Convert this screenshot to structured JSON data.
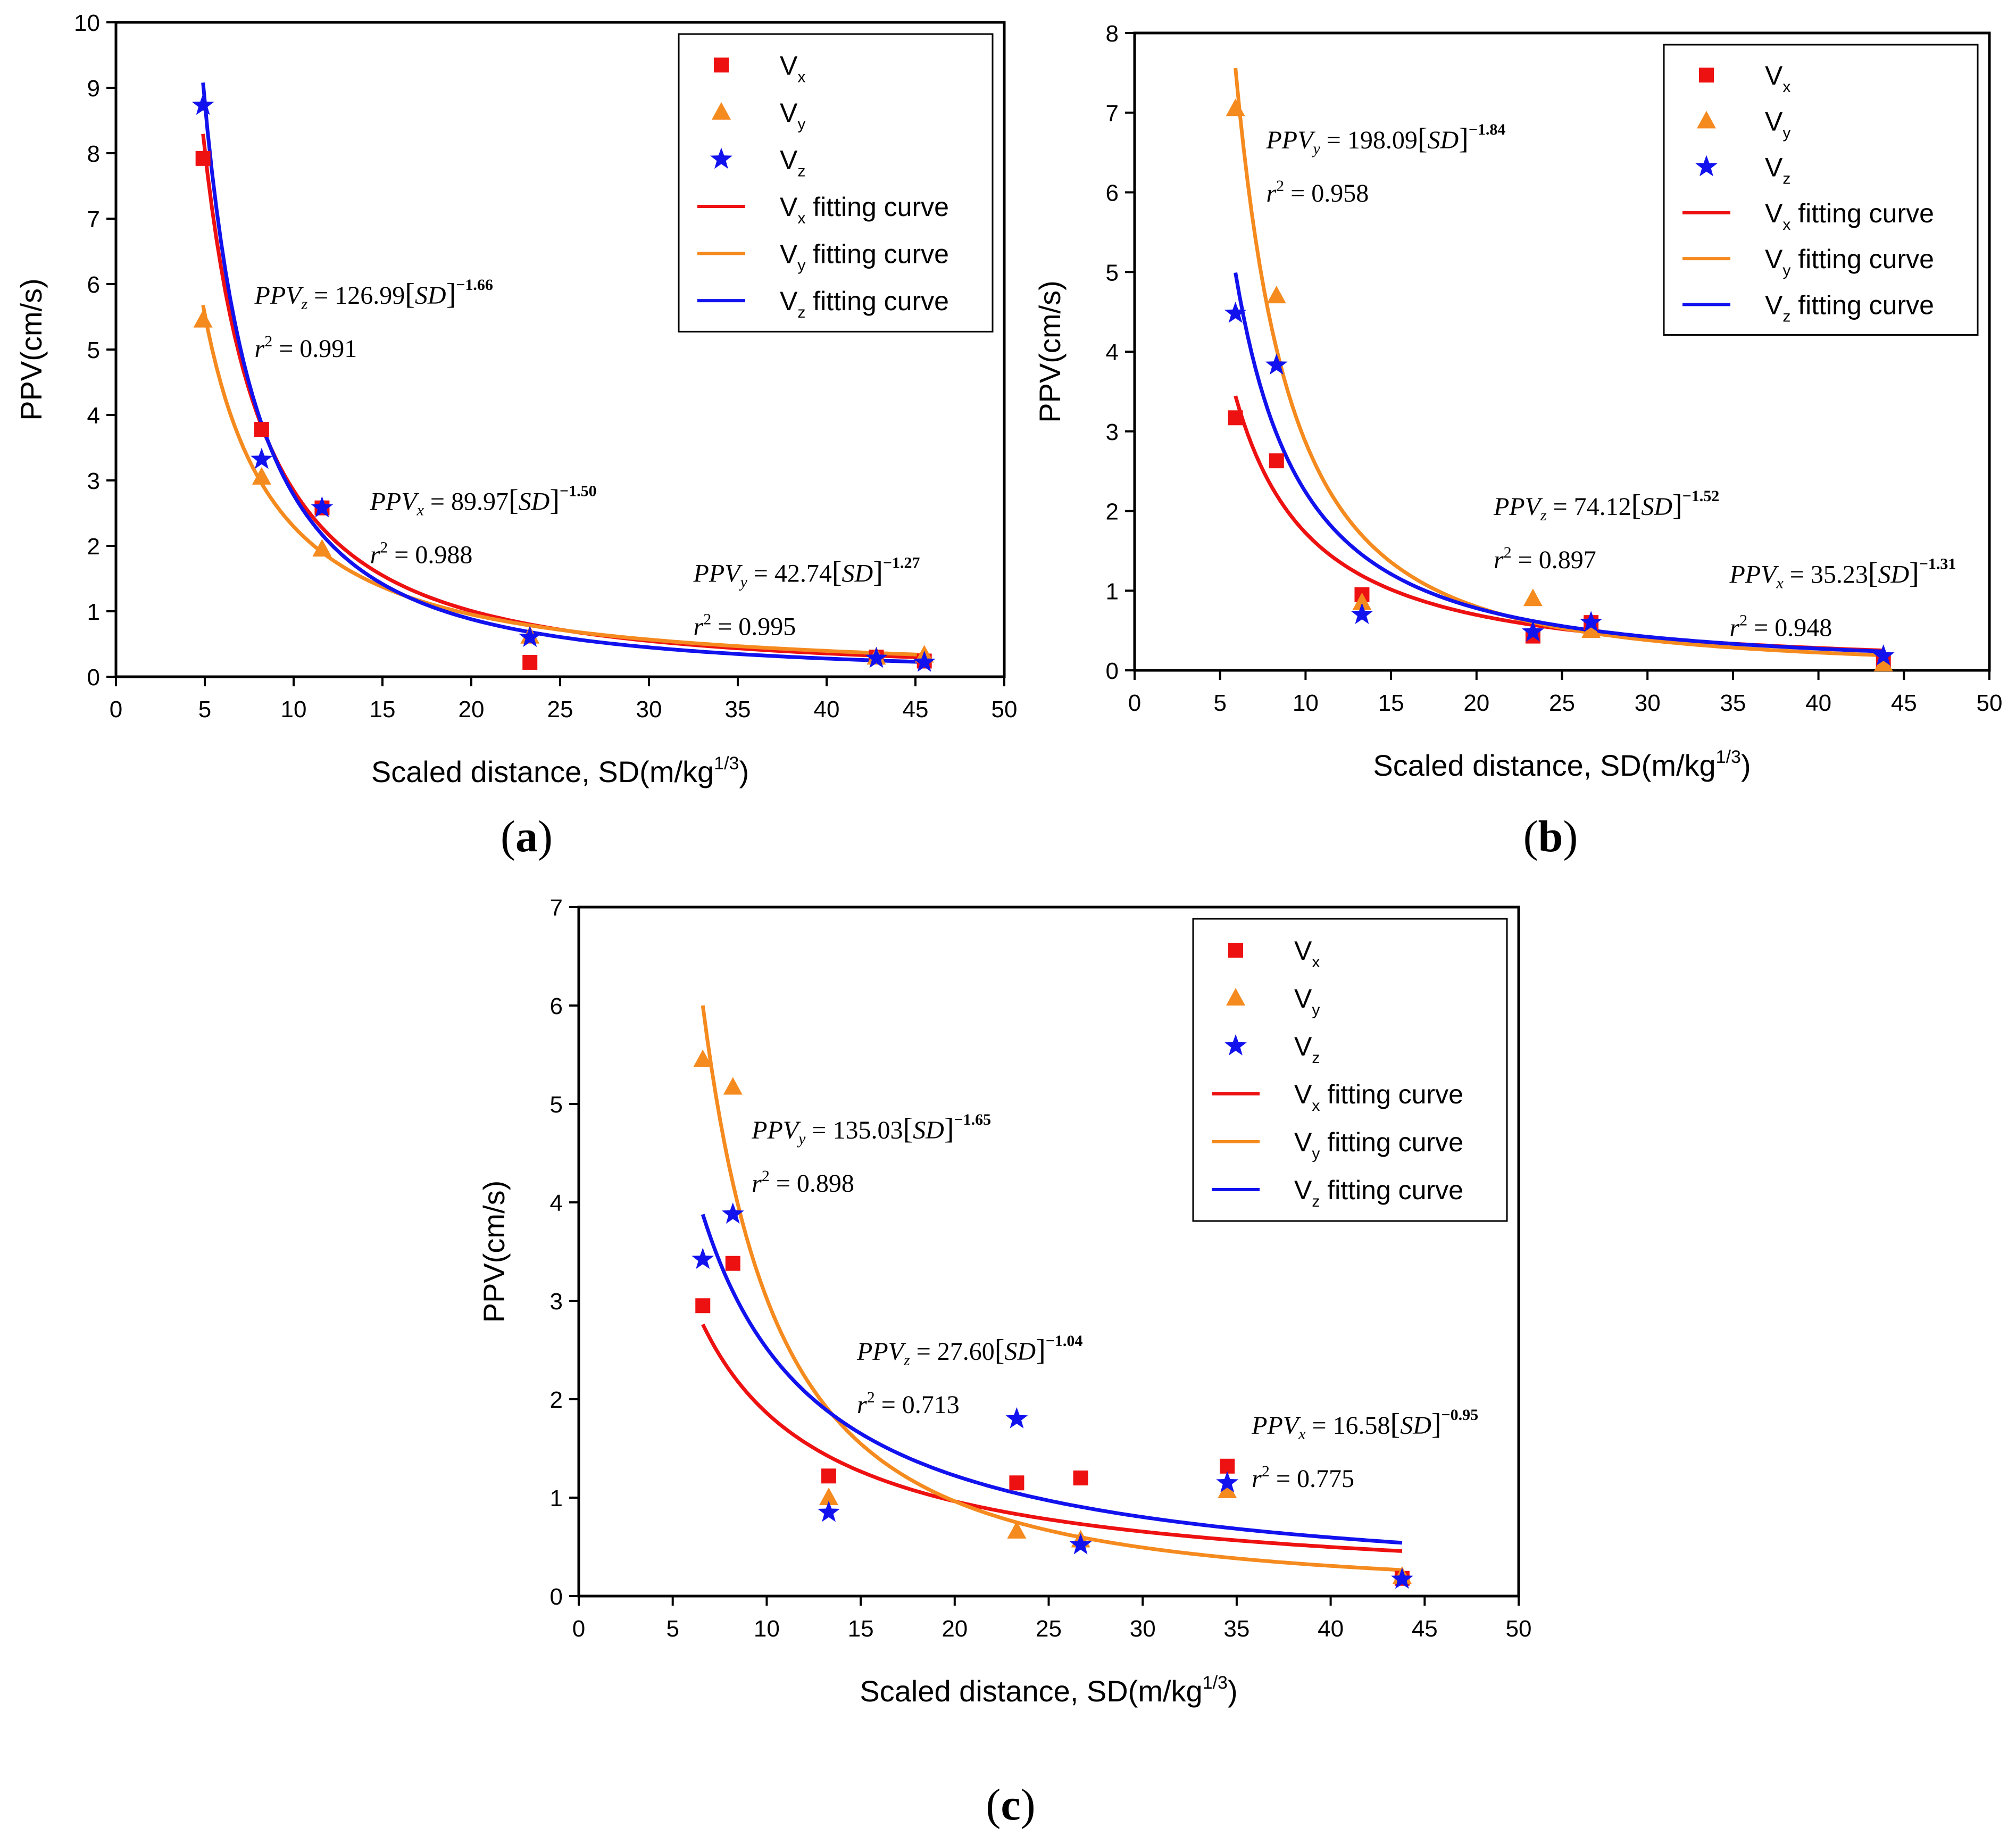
{
  "figure": {
    "panels": [
      {
        "label": "(a)",
        "letter": "a"
      },
      {
        "label": "(b)",
        "letter": "b"
      },
      {
        "label": "(c)",
        "letter": "c"
      }
    ]
  },
  "chart_data": [
    {
      "type": "scatter",
      "panel": "a",
      "xlabel": "Scaled distance, SD(m/kg",
      "xlabel_sup": "1/3",
      "xlabel_close": ")",
      "ylabel": "PPV(cm/s)",
      "xlim": [
        0,
        50
      ],
      "ylim": [
        0,
        10
      ],
      "xticks": [
        0,
        5,
        10,
        15,
        20,
        25,
        30,
        35,
        40,
        45,
        50
      ],
      "yticks": [
        0,
        1,
        2,
        3,
        4,
        5,
        6,
        7,
        8,
        9,
        10
      ],
      "legend_position": "top-right",
      "series": [
        {
          "name": "V",
          "sub": "x",
          "marker": "square",
          "color": "#ee1111",
          "points": [
            [
              4.9,
              7.92
            ],
            [
              8.2,
              3.78
            ],
            [
              11.6,
              2.58
            ],
            [
              23.3,
              0.22
            ],
            [
              42.8,
              0.3
            ],
            [
              45.5,
              0.24
            ]
          ]
        },
        {
          "name": "V",
          "sub": "y",
          "marker": "triangle",
          "color": "#f58a1f",
          "points": [
            [
              4.9,
              5.45
            ],
            [
              8.2,
              3.05
            ],
            [
              11.6,
              1.95
            ],
            [
              23.3,
              0.62
            ],
            [
              42.8,
              0.3
            ],
            [
              45.5,
              0.33
            ]
          ]
        },
        {
          "name": "V",
          "sub": "z",
          "marker": "star",
          "color": "#1212ee",
          "points": [
            [
              4.9,
              8.73
            ],
            [
              8.2,
              3.32
            ],
            [
              11.6,
              2.58
            ],
            [
              23.3,
              0.6
            ],
            [
              42.8,
              0.28
            ],
            [
              45.5,
              0.22
            ]
          ]
        }
      ],
      "curves": [
        {
          "name": "V",
          "sub": "x",
          "label": "fitting curve",
          "color": "#ee1111",
          "k": 89.97,
          "b": -1.5,
          "x_from": 4.9,
          "x_to": 45.5
        },
        {
          "name": "V",
          "sub": "y",
          "label": "fitting curve",
          "color": "#f58a1f",
          "k": 42.74,
          "b": -1.27,
          "x_from": 4.9,
          "x_to": 45.5
        },
        {
          "name": "V",
          "sub": "z",
          "label": "fitting curve",
          "color": "#1212ee",
          "k": 126.99,
          "b": -1.66,
          "x_from": 4.9,
          "x_to": 45.5
        }
      ],
      "annotations": [
        {
          "sub": "z",
          "coef": "126.99",
          "exp": "−1.66",
          "r2": "0.991",
          "x": 7.8,
          "y": 5.7
        },
        {
          "sub": "x",
          "coef": "89.97",
          "exp": "−1.50",
          "r2": "0.988",
          "x": 14.3,
          "y": 2.55
        },
        {
          "sub": "y",
          "coef": "42.74",
          "exp": "−1.27",
          "r2": "0.995",
          "x": 32.5,
          "y": 1.45
        }
      ]
    },
    {
      "type": "scatter",
      "panel": "b",
      "xlabel": "Scaled distance, SD(m/kg",
      "xlabel_sup": "1/3",
      "xlabel_close": ")",
      "ylabel": "PPV(cm/s)",
      "xlim": [
        0,
        50
      ],
      "ylim": [
        0,
        8
      ],
      "xticks": [
        0,
        5,
        10,
        15,
        20,
        25,
        30,
        35,
        40,
        45,
        50
      ],
      "yticks": [
        0,
        1,
        2,
        3,
        4,
        5,
        6,
        7,
        8
      ],
      "legend_position": "top-right",
      "series": [
        {
          "name": "V",
          "sub": "x",
          "marker": "square",
          "color": "#ee1111",
          "points": [
            [
              5.9,
              3.17
            ],
            [
              8.3,
              2.63
            ],
            [
              13.3,
              0.95
            ],
            [
              23.3,
              0.43
            ],
            [
              26.7,
              0.6
            ],
            [
              43.8,
              0.12
            ]
          ]
        },
        {
          "name": "V",
          "sub": "y",
          "marker": "triangle",
          "color": "#f58a1f",
          "points": [
            [
              5.9,
              7.05
            ],
            [
              8.3,
              4.7
            ],
            [
              13.3,
              0.85
            ],
            [
              23.3,
              0.9
            ],
            [
              26.7,
              0.5
            ],
            [
              43.8,
              0.08
            ]
          ]
        },
        {
          "name": "V",
          "sub": "z",
          "marker": "star",
          "color": "#1212ee",
          "points": [
            [
              5.9,
              4.48
            ],
            [
              8.3,
              3.83
            ],
            [
              13.3,
              0.7
            ],
            [
              23.3,
              0.48
            ],
            [
              26.7,
              0.6
            ],
            [
              43.8,
              0.18
            ]
          ]
        }
      ],
      "curves": [
        {
          "name": "V",
          "sub": "x",
          "label": "fitting curve",
          "color": "#ee1111",
          "k": 35.23,
          "b": -1.31,
          "x_from": 5.9,
          "x_to": 43.8
        },
        {
          "name": "V",
          "sub": "y",
          "label": "fitting curve",
          "color": "#f58a1f",
          "k": 198.09,
          "b": -1.84,
          "x_from": 5.9,
          "x_to": 43.8
        },
        {
          "name": "V",
          "sub": "z",
          "label": "fitting curve",
          "color": "#1212ee",
          "k": 74.12,
          "b": -1.52,
          "x_from": 5.9,
          "x_to": 43.8
        }
      ],
      "annotations": [
        {
          "sub": "y",
          "coef": "198.09",
          "exp": "−1.84",
          "r2": "0.958",
          "x": 7.7,
          "y": 6.55
        },
        {
          "sub": "z",
          "coef": "74.12",
          "exp": "−1.52",
          "r2": "0.897",
          "x": 21.0,
          "y": 1.95
        },
        {
          "sub": "x",
          "coef": "35.23",
          "exp": "−1.31",
          "r2": "0.948",
          "x": 34.8,
          "y": 1.1
        }
      ]
    },
    {
      "type": "scatter",
      "panel": "c",
      "xlabel": "Scaled distance, SD(m/kg",
      "xlabel_sup": "1/3",
      "xlabel_close": ")",
      "ylabel": "PPV(cm/s)",
      "xlim": [
        0,
        50
      ],
      "ylim": [
        0,
        7
      ],
      "xticks": [
        0,
        5,
        10,
        15,
        20,
        25,
        30,
        35,
        40,
        45,
        50
      ],
      "yticks": [
        0,
        1,
        2,
        3,
        4,
        5,
        6,
        7
      ],
      "legend_position": "top-right",
      "series": [
        {
          "name": "V",
          "sub": "x",
          "marker": "square",
          "color": "#ee1111",
          "points": [
            [
              6.6,
              2.95
            ],
            [
              8.2,
              3.38
            ],
            [
              13.3,
              1.22
            ],
            [
              23.3,
              1.15
            ],
            [
              26.7,
              1.2
            ],
            [
              34.5,
              1.32
            ],
            [
              43.8,
              0.18
            ]
          ]
        },
        {
          "name": "V",
          "sub": "y",
          "marker": "triangle",
          "color": "#f58a1f",
          "points": [
            [
              6.6,
              5.45
            ],
            [
              8.2,
              5.17
            ],
            [
              13.3,
              1.0
            ],
            [
              23.3,
              0.66
            ],
            [
              26.7,
              0.57
            ],
            [
              34.5,
              1.07
            ],
            [
              43.8,
              0.2
            ]
          ]
        },
        {
          "name": "V",
          "sub": "z",
          "marker": "star",
          "color": "#1212ee",
          "points": [
            [
              6.6,
              3.42
            ],
            [
              8.2,
              3.88
            ],
            [
              13.3,
              0.85
            ],
            [
              23.3,
              1.8
            ],
            [
              26.7,
              0.52
            ],
            [
              34.5,
              1.15
            ],
            [
              43.8,
              0.17
            ]
          ]
        }
      ],
      "curves": [
        {
          "name": "V",
          "sub": "x",
          "label": "fitting curve",
          "color": "#ee1111",
          "k": 16.58,
          "b": -0.95,
          "x_from": 6.6,
          "x_to": 43.8
        },
        {
          "name": "V",
          "sub": "y",
          "label": "fitting curve",
          "color": "#f58a1f",
          "k": 135.03,
          "b": -1.65,
          "x_from": 6.6,
          "x_to": 43.8
        },
        {
          "name": "V",
          "sub": "z",
          "label": "fitting curve",
          "color": "#1212ee",
          "k": 27.6,
          "b": -1.04,
          "x_from": 6.6,
          "x_to": 43.8
        }
      ],
      "annotations": [
        {
          "sub": "y",
          "coef": "135.03",
          "exp": "−1.65",
          "r2": "0.898",
          "x": 9.2,
          "y": 4.65
        },
        {
          "sub": "z",
          "coef": "27.60",
          "exp": "−1.04",
          "r2": "0.713",
          "x": 14.8,
          "y": 2.4
        },
        {
          "sub": "x",
          "coef": "16.58",
          "exp": "−0.95",
          "r2": "0.775",
          "x": 35.8,
          "y": 1.65
        }
      ]
    }
  ]
}
